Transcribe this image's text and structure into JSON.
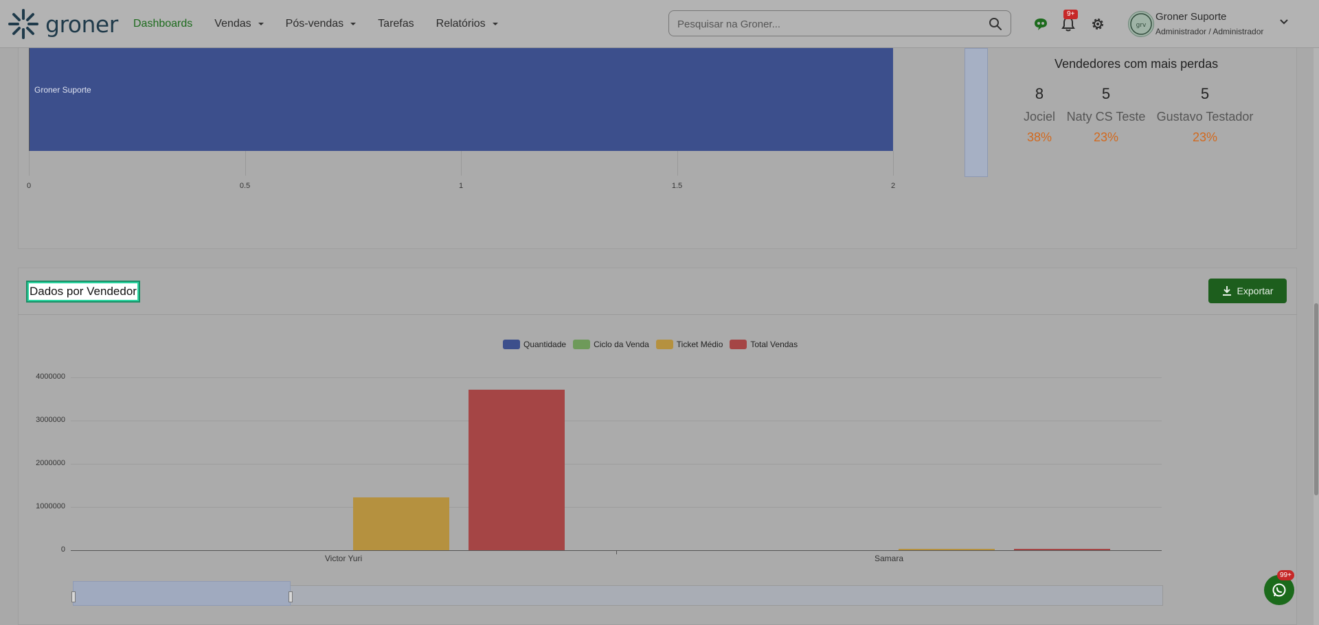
{
  "nav": {
    "logo_text": "groner",
    "items": [
      {
        "label": "Dashboards",
        "active": true,
        "dropdown": false
      },
      {
        "label": "Vendas",
        "active": false,
        "dropdown": true
      },
      {
        "label": "Pós-vendas",
        "active": false,
        "dropdown": true
      },
      {
        "label": "Tarefas",
        "active": false,
        "dropdown": false
      },
      {
        "label": "Relatórios",
        "active": false,
        "dropdown": true
      }
    ],
    "search_placeholder": "Pesquisar na Groner...",
    "notif_badge": "9+",
    "user_name": "Groner Suporte",
    "user_role": "Administrador / Administrador"
  },
  "top_chart": {
    "bar_label": "Groner Suporte",
    "ticks": [
      "0",
      "0.5",
      "1",
      "1.5",
      "2"
    ],
    "value": 2
  },
  "losses": {
    "title": "Vendedores com mais perdas",
    "sellers": [
      {
        "count": "8",
        "name": "Jociel",
        "pct": "38%"
      },
      {
        "count": "5",
        "name": "Naty CS Teste",
        "pct": "23%"
      },
      {
        "count": "5",
        "name": "Gustavo Testador",
        "pct": "23%"
      }
    ]
  },
  "seller_section": {
    "title": "Dados por Vendedor",
    "export_label": "Exportar"
  },
  "chart_data": {
    "type": "bar",
    "categories": [
      "Victor Yuri",
      "Samara"
    ],
    "series": [
      {
        "name": "Quantidade",
        "color": "#3c4f8c",
        "values": [
          0,
          0
        ]
      },
      {
        "name": "Ciclo da Venda",
        "color": "#6e9a5a",
        "values": [
          0,
          0
        ]
      },
      {
        "name": "Ticket Médio",
        "color": "#b5913f",
        "values": [
          1230000,
          6000
        ]
      },
      {
        "name": "Total Vendas",
        "color": "#a54545",
        "values": [
          3720000,
          20000
        ]
      }
    ],
    "ylim": [
      0,
      4000000
    ],
    "yticks": [
      "0",
      "1000000",
      "2000000",
      "3000000",
      "4000000"
    ],
    "legend": "top-center"
  },
  "whatsapp_badge": "99+"
}
